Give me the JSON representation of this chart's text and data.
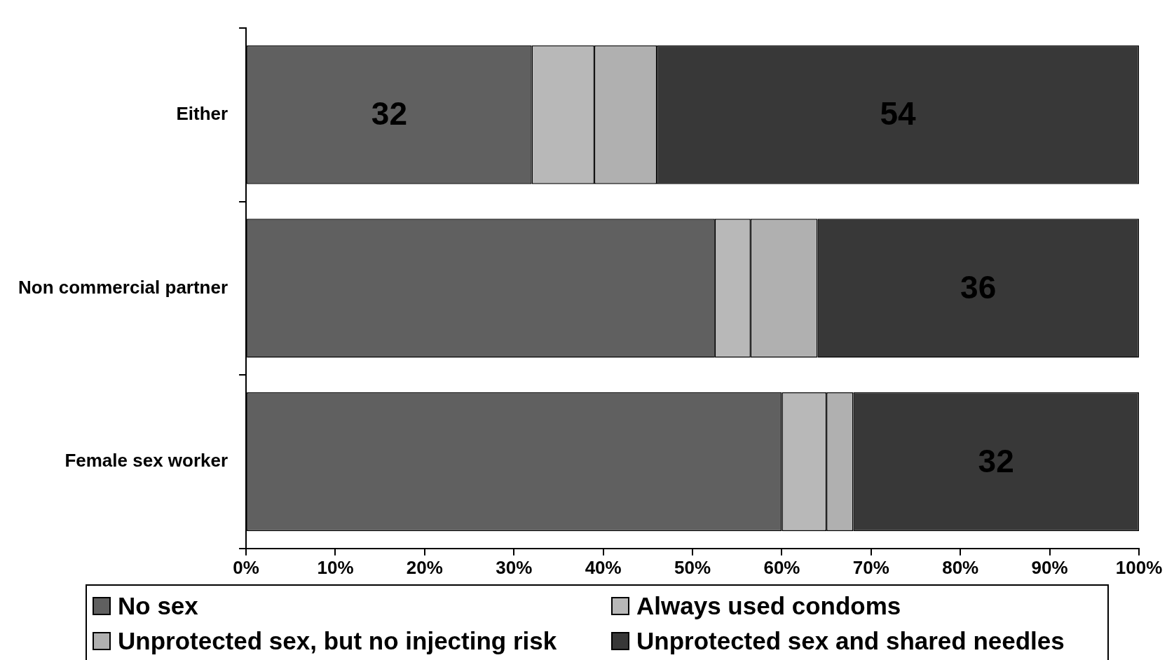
{
  "chart_data": {
    "type": "bar",
    "orientation": "horizontal",
    "stacked": true,
    "categories": [
      "Either",
      "Non commercial partner",
      "Female sex worker"
    ],
    "series": [
      {
        "name": "No sex",
        "color": "#606060",
        "values": [
          32,
          52.5,
          60
        ],
        "value_labels": [
          "32",
          null,
          null
        ]
      },
      {
        "name": "Always used condoms",
        "color": "#b8b8b8",
        "values": [
          7,
          4,
          5
        ],
        "value_labels": [
          null,
          null,
          null
        ]
      },
      {
        "name": "Unprotected sex, but no injecting risk",
        "color": "#b0b0b0",
        "values": [
          7,
          7.5,
          3
        ],
        "value_labels": [
          null,
          null,
          null
        ]
      },
      {
        "name": "Unprotected sex and shared needles",
        "color": "#383838",
        "values": [
          54,
          36,
          32
        ],
        "value_labels": [
          "54",
          "36",
          "32"
        ]
      }
    ],
    "xlim": [
      0,
      100
    ],
    "xticks": [
      {
        "value": 0,
        "label": "0%"
      },
      {
        "value": 10,
        "label": "10%"
      },
      {
        "value": 20,
        "label": "20%"
      },
      {
        "value": 30,
        "label": "30%"
      },
      {
        "value": 40,
        "label": "40%"
      },
      {
        "value": 50,
        "label": "50%"
      },
      {
        "value": 60,
        "label": "60%"
      },
      {
        "value": 70,
        "label": "70%"
      },
      {
        "value": 80,
        "label": "80%"
      },
      {
        "value": 90,
        "label": "90%"
      },
      {
        "value": 100,
        "label": "100%"
      }
    ],
    "grid": false,
    "legend": "bottom"
  }
}
